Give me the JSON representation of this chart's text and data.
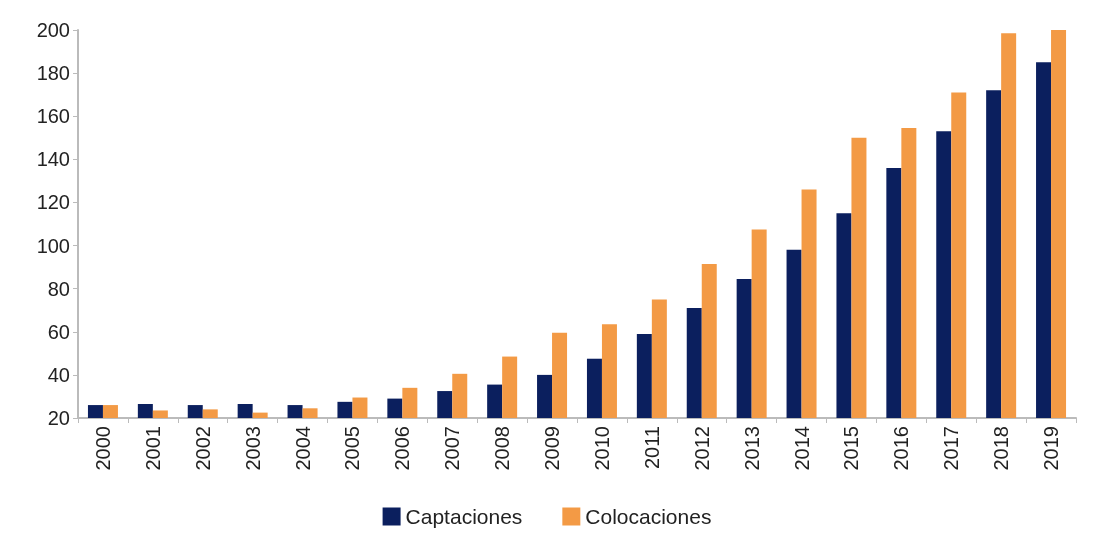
{
  "chart_data": {
    "type": "bar",
    "categories": [
      "2000",
      "2001",
      "2002",
      "2003",
      "2004",
      "2005",
      "2006",
      "2007",
      "2008",
      "2009",
      "2010",
      "2011",
      "2012",
      "2013",
      "2014",
      "2015",
      "2016",
      "2017",
      "2018",
      "2019"
    ],
    "series": [
      {
        "name": "Captaciones",
        "color": "#0b1f5e",
        "values": [
          26,
          26.5,
          26,
          26.5,
          26,
          27.5,
          29,
          32.5,
          35.5,
          40,
          47.5,
          59,
          71,
          84.5,
          98,
          115,
          136,
          153,
          172,
          185
        ]
      },
      {
        "name": "Colocaciones",
        "color": "#f39a45",
        "values": [
          26,
          23.5,
          24,
          22.5,
          24.5,
          29.5,
          34,
          40.5,
          48.5,
          59.5,
          63.5,
          75,
          91.5,
          107.5,
          126,
          150,
          154.5,
          171,
          198.5,
          200
        ]
      }
    ],
    "ylim": [
      20,
      200
    ],
    "yticks": [
      20,
      40,
      60,
      80,
      100,
      120,
      140,
      160,
      180,
      200
    ],
    "grid": false,
    "legend": "bottom"
  }
}
